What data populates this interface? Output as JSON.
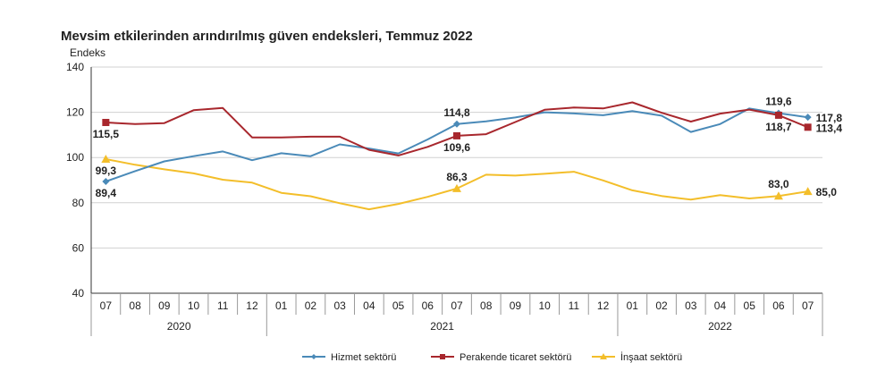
{
  "chart_data": {
    "type": "line",
    "title": "Mevsim etkilerinden arındırılmış güven endeksleri, Temmuz 2022",
    "ylabel": "Endeks",
    "ylim": [
      40,
      140
    ],
    "yticks": [
      "40",
      "60",
      "80",
      "100",
      "120",
      "140"
    ],
    "categories": [
      "07",
      "08",
      "09",
      "10",
      "11",
      "12",
      "01",
      "02",
      "03",
      "04",
      "05",
      "06",
      "07",
      "08",
      "09",
      "10",
      "11",
      "12",
      "01",
      "02",
      "03",
      "04",
      "05",
      "06",
      "07"
    ],
    "years": [
      {
        "label": "2020",
        "start": 0,
        "end": 5
      },
      {
        "label": "2021",
        "start": 6,
        "end": 17
      },
      {
        "label": "2022",
        "start": 18,
        "end": 24
      }
    ],
    "grid": "horizontal",
    "legend": "bottom",
    "series": [
      {
        "name": "Hizmet sektörü",
        "color": "#4a8ab8",
        "marker": "diamond",
        "values": [
          89.4,
          94.0,
          98.3,
          100.6,
          102.7,
          98.8,
          101.9,
          100.6,
          105.8,
          104.0,
          101.8,
          108.0,
          114.8,
          116.0,
          117.7,
          120.0,
          119.5,
          118.7,
          120.5,
          118.5,
          111.3,
          114.8,
          121.7,
          119.6,
          117.8
        ]
      },
      {
        "name": "Perakende ticaret sektörü",
        "color": "#a8272d",
        "marker": "square",
        "values": [
          115.5,
          114.8,
          115.2,
          120.9,
          121.9,
          108.9,
          108.9,
          109.2,
          109.2,
          103.4,
          100.9,
          104.7,
          109.6,
          110.3,
          115.7,
          121.1,
          122.1,
          121.7,
          124.4,
          119.8,
          115.9,
          119.4,
          121.2,
          118.7,
          113.4
        ]
      },
      {
        "name": "İnşaat sektörü",
        "color": "#f3be2a",
        "marker": "triangle",
        "values": [
          99.3,
          96.8,
          94.8,
          93.0,
          90.2,
          88.9,
          84.4,
          82.9,
          79.8,
          77.1,
          79.5,
          82.6,
          86.3,
          92.4,
          92.0,
          92.8,
          93.7,
          89.9,
          85.5,
          83.0,
          81.4,
          83.4,
          81.9,
          83.0,
          85.0
        ]
      }
    ],
    "data_labels": [
      {
        "series": 0,
        "index": 0,
        "text": "89,4",
        "pos": "below"
      },
      {
        "series": 2,
        "index": 0,
        "text": "99,3",
        "pos": "below"
      },
      {
        "series": 1,
        "index": 0,
        "text": "115,5",
        "pos": "below"
      },
      {
        "series": 0,
        "index": 12,
        "text": "114,8",
        "pos": "above"
      },
      {
        "series": 1,
        "index": 12,
        "text": "109,6",
        "pos": "below"
      },
      {
        "series": 2,
        "index": 12,
        "text": "86,3",
        "pos": "above"
      },
      {
        "series": 0,
        "index": 23,
        "text": "119,6",
        "pos": "above"
      },
      {
        "series": 1,
        "index": 23,
        "text": "118,7",
        "pos": "below"
      },
      {
        "series": 2,
        "index": 23,
        "text": "83,0",
        "pos": "above"
      },
      {
        "series": 0,
        "index": 24,
        "text": "117,8",
        "pos": "right"
      },
      {
        "series": 1,
        "index": 24,
        "text": "113,4",
        "pos": "right"
      },
      {
        "series": 2,
        "index": 24,
        "text": "85,0",
        "pos": "right"
      }
    ]
  }
}
